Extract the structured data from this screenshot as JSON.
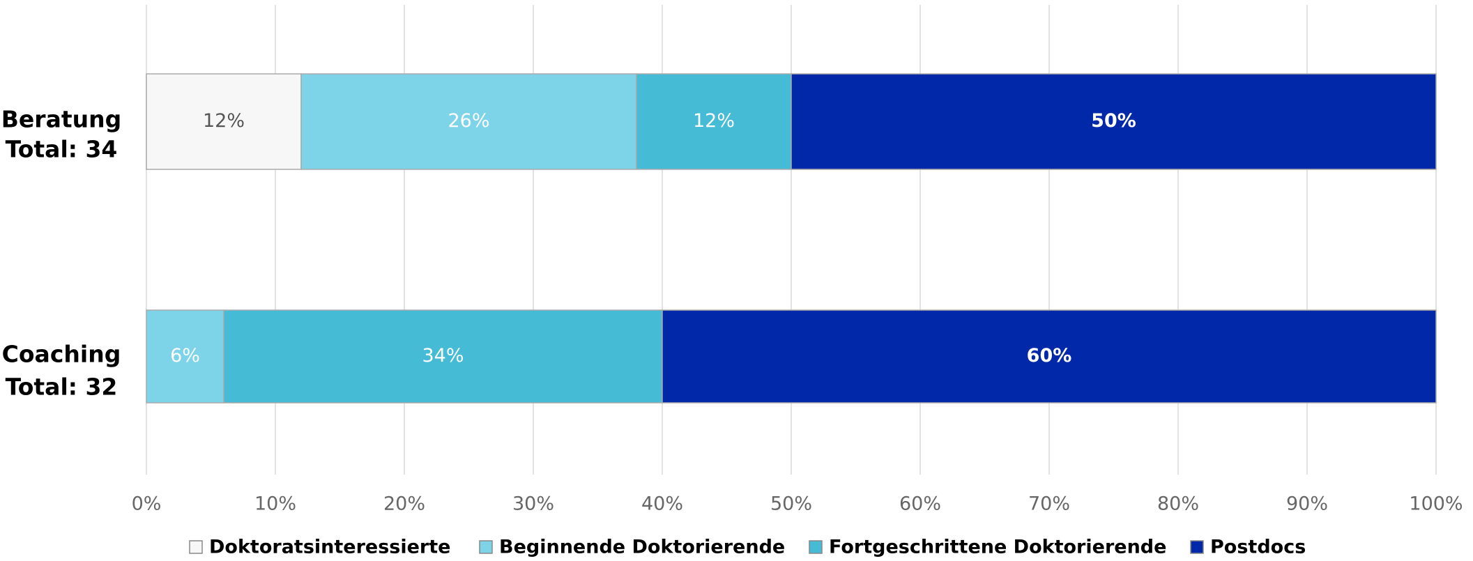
{
  "chart_data": {
    "type": "stacked-bar-horizontal",
    "categories": [
      [
        "Beratung",
        "Total: 34"
      ],
      [
        "Coaching",
        "Total: 32"
      ]
    ],
    "series": [
      {
        "name": "Doktoratsinteressierte",
        "color": "#f7f7f7",
        "values": [
          12,
          0
        ],
        "value_labels": [
          "12%",
          null
        ]
      },
      {
        "name": "Beginnende Doktorierende",
        "color": "#7dd3e8",
        "values": [
          26,
          6
        ],
        "value_labels": [
          "26%",
          "6%"
        ]
      },
      {
        "name": "Fortgeschrittene Doktorierende",
        "color": "#45bbd6",
        "values": [
          12,
          34
        ],
        "value_labels": [
          "12%",
          "34%"
        ]
      },
      {
        "name": "Postdocs",
        "color": "#0028a8",
        "values": [
          50,
          60
        ],
        "value_labels": [
          "50%",
          "60%"
        ]
      }
    ],
    "xlim": [
      0,
      100
    ],
    "xticks": [
      {
        "value": 0,
        "label": "0%"
      },
      {
        "value": 10,
        "label": "10%"
      },
      {
        "value": 20,
        "label": "20%"
      },
      {
        "value": 30,
        "label": "30%"
      },
      {
        "value": 40,
        "label": "40%"
      },
      {
        "value": 50,
        "label": "50%"
      },
      {
        "value": 60,
        "label": "60%"
      },
      {
        "value": 70,
        "label": "70%"
      },
      {
        "value": 80,
        "label": "80%"
      },
      {
        "value": 90,
        "label": "90%"
      },
      {
        "value": 100,
        "label": "100%"
      }
    ],
    "grid": true,
    "legend": "bottom"
  }
}
